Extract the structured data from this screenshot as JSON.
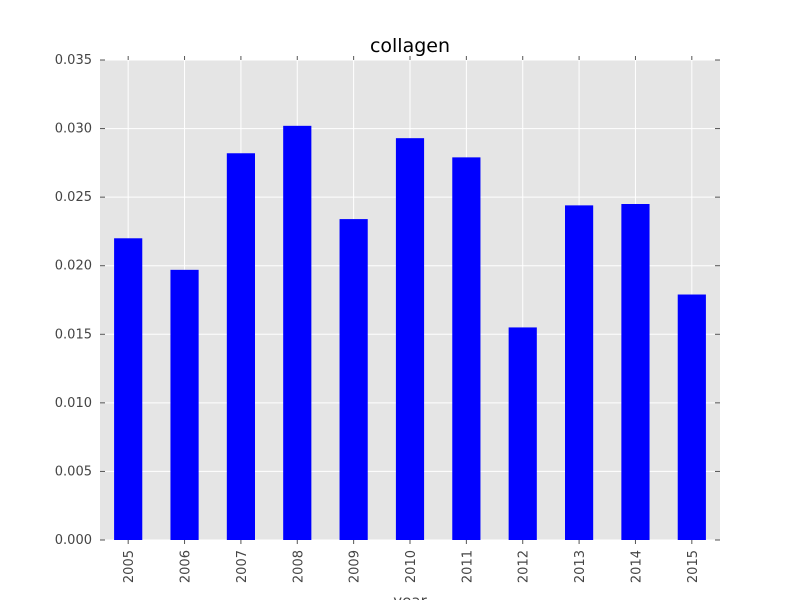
{
  "chart_data": {
    "type": "bar",
    "title": "collagen",
    "xlabel": "year",
    "ylabel": "",
    "categories": [
      "2005",
      "2006",
      "2007",
      "2008",
      "2009",
      "2010",
      "2011",
      "2012",
      "2013",
      "2014",
      "2015"
    ],
    "values": [
      0.022,
      0.0197,
      0.0282,
      0.0302,
      0.0234,
      0.0293,
      0.0279,
      0.0155,
      0.0244,
      0.0245,
      0.0179
    ],
    "ylim": [
      0,
      0.035
    ],
    "yticks": [
      "0.000",
      "0.005",
      "0.010",
      "0.015",
      "0.020",
      "0.025",
      "0.030",
      "0.035"
    ],
    "grid": true,
    "legend": "none",
    "colors": {
      "bar": "#0000ff",
      "plot_background": "#e5e5e5",
      "grid": "#ffffff",
      "text": "#444444"
    }
  }
}
